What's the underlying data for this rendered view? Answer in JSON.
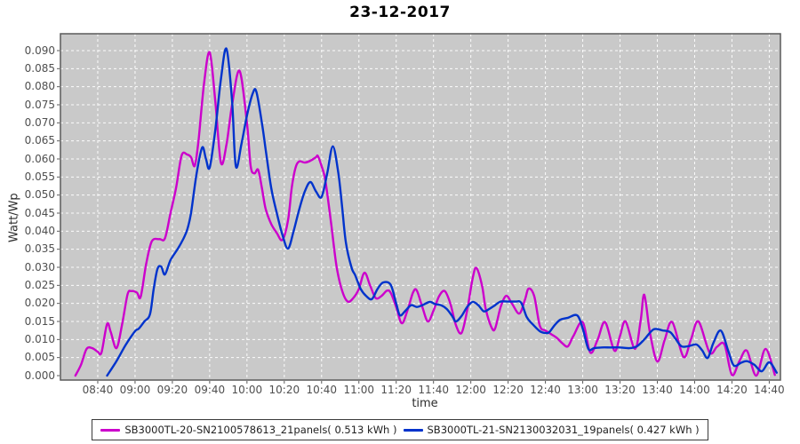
{
  "title": "23-12-2017",
  "axes": {
    "y_label": "Watt/Wp",
    "x_label": "time",
    "y_ticks": [
      "0.000",
      "0.005",
      "0.010",
      "0.015",
      "0.020",
      "0.025",
      "0.030",
      "0.035",
      "0.040",
      "0.045",
      "0.050",
      "0.055",
      "0.060",
      "0.065",
      "0.070",
      "0.075",
      "0.080",
      "0.085",
      "0.090"
    ],
    "x_ticks": [
      "08:40",
      "09:00",
      "09:20",
      "09:40",
      "10:00",
      "10:20",
      "10:40",
      "11:00",
      "11:20",
      "11:40",
      "12:00",
      "12:20",
      "12:40",
      "13:00",
      "13:20",
      "13:40",
      "14:00",
      "14:20",
      "14:40"
    ]
  },
  "legend": {
    "items": [
      {
        "label": "SB3000TL-20-SN2100578613_21panels( 0.513 kWh )",
        "color": "#cc00cc",
        "energy_kwh": "0.513"
      },
      {
        "label": "SB3000TL-21-SN2130032031_19panels( 0.427 kWh )",
        "color": "#0033cc",
        "energy_kwh": "0.427"
      }
    ]
  },
  "style_colors": {
    "plot_background": "#c9c9c9",
    "gridline": "#ffffff",
    "plot_border": "#5a5a5a",
    "tick_mark": "#5a5a5a"
  },
  "chart_data": {
    "type": "line",
    "title": "23-12-2017",
    "xlabel": "time",
    "ylabel": "Watt/Wp",
    "x_unit": "minutes-since-midnight",
    "x_domain": [
      500,
      886
    ],
    "x_tick_step_minutes": 20,
    "ylim": [
      0,
      0.09
    ],
    "y_tick_step": 0.005,
    "grid": true,
    "legend_position": "bottom",
    "series": [
      {
        "name": "SB3000TL-20-SN2100578613_21panels( 0.513 kWh )",
        "color": "#cc00cc",
        "points": [
          [
            508,
            0
          ],
          [
            511,
            0.003
          ],
          [
            514,
            0.0074
          ],
          [
            517,
            0.0076
          ],
          [
            520,
            0.0066
          ],
          [
            522,
            0.0064
          ],
          [
            525,
            0.0143
          ],
          [
            527,
            0.012
          ],
          [
            530,
            0.0076
          ],
          [
            533,
            0.014
          ],
          [
            536,
            0.0225
          ],
          [
            538,
            0.0234
          ],
          [
            541,
            0.023
          ],
          [
            543,
            0.0218
          ],
          [
            546,
            0.031
          ],
          [
            549,
            0.0372
          ],
          [
            553,
            0.0378
          ],
          [
            556,
            0.038
          ],
          [
            559,
            0.045
          ],
          [
            562,
            0.052
          ],
          [
            565,
            0.061
          ],
          [
            568,
            0.0612
          ],
          [
            570,
            0.0605
          ],
          [
            572,
            0.0581
          ],
          [
            574,
            0.065
          ],
          [
            577,
            0.081
          ],
          [
            580,
            0.0895
          ],
          [
            583,
            0.076
          ],
          [
            586,
            0.059
          ],
          [
            589,
            0.064
          ],
          [
            592,
            0.075
          ],
          [
            596,
            0.0844
          ],
          [
            600,
            0.07
          ],
          [
            602,
            0.058
          ],
          [
            604,
            0.056
          ],
          [
            606,
            0.057
          ],
          [
            608,
            0.052
          ],
          [
            610,
            0.0462
          ],
          [
            613,
            0.042
          ],
          [
            616,
            0.0395
          ],
          [
            619,
            0.0376
          ],
          [
            622,
            0.043
          ],
          [
            624,
            0.052
          ],
          [
            626,
            0.0575
          ],
          [
            628,
            0.0593
          ],
          [
            631,
            0.059
          ],
          [
            634,
            0.0595
          ],
          [
            637,
            0.0605
          ],
          [
            638,
            0.0608
          ],
          [
            640,
            0.058
          ],
          [
            642,
            0.0541
          ],
          [
            645,
            0.0426
          ],
          [
            648,
            0.0303
          ],
          [
            651,
            0.0235
          ],
          [
            654,
            0.0205
          ],
          [
            657,
            0.0215
          ],
          [
            660,
            0.024
          ],
          [
            663,
            0.0285
          ],
          [
            666,
            0.025
          ],
          [
            669,
            0.0215
          ],
          [
            672,
            0.022
          ],
          [
            675,
            0.0235
          ],
          [
            677,
            0.023
          ],
          [
            680,
            0.019
          ],
          [
            683,
            0.0145
          ],
          [
            686,
            0.018
          ],
          [
            689,
            0.023
          ],
          [
            691,
            0.0236
          ],
          [
            694,
            0.019
          ],
          [
            697,
            0.015
          ],
          [
            700,
            0.018
          ],
          [
            703,
            0.022
          ],
          [
            706,
            0.0234
          ],
          [
            709,
            0.02
          ],
          [
            712,
            0.014
          ],
          [
            715,
            0.0118
          ],
          [
            718,
            0.018
          ],
          [
            721,
            0.027
          ],
          [
            723,
            0.0298
          ],
          [
            726,
            0.025
          ],
          [
            728,
            0.0185
          ],
          [
            731,
            0.0135
          ],
          [
            733,
            0.013
          ],
          [
            736,
            0.019
          ],
          [
            739,
            0.0221
          ],
          [
            742,
            0.02
          ],
          [
            746,
            0.0172
          ],
          [
            749,
            0.021
          ],
          [
            751,
            0.0241
          ],
          [
            754,
            0.022
          ],
          [
            757,
            0.0138
          ],
          [
            760,
            0.0125
          ],
          [
            763,
            0.0115
          ],
          [
            766,
            0.0105
          ],
          [
            769,
            0.009
          ],
          [
            772,
            0.0081
          ],
          [
            775,
            0.011
          ],
          [
            780,
            0.0148
          ],
          [
            784,
            0.0064
          ],
          [
            788,
            0.01
          ],
          [
            792,
            0.0148
          ],
          [
            797,
            0.0069
          ],
          [
            800,
            0.011
          ],
          [
            803,
            0.015
          ],
          [
            808,
            0.0074
          ],
          [
            811,
            0.015
          ],
          [
            813,
            0.0224
          ],
          [
            816,
            0.012
          ],
          [
            820,
            0.0039
          ],
          [
            824,
            0.01
          ],
          [
            828,
            0.0148
          ],
          [
            834,
            0.0052
          ],
          [
            838,
            0.01
          ],
          [
            842,
            0.015
          ],
          [
            848,
            0.0064
          ],
          [
            852,
            0.008
          ],
          [
            856,
            0.0086
          ],
          [
            860,
            0.0002
          ],
          [
            864,
            0.004
          ],
          [
            868,
            0.0069
          ],
          [
            873,
            0
          ],
          [
            878,
            0.0074
          ],
          [
            883,
            0.0002
          ]
        ]
      },
      {
        "name": "SB3000TL-21-SN2130032031_19panels( 0.427 kWh )",
        "color": "#0033cc",
        "points": [
          [
            525,
            0
          ],
          [
            530,
            0.004
          ],
          [
            535,
            0.0085
          ],
          [
            540,
            0.0123
          ],
          [
            542,
            0.013
          ],
          [
            545,
            0.015
          ],
          [
            548,
            0.017
          ],
          [
            550,
            0.024
          ],
          [
            552,
            0.0295
          ],
          [
            554,
            0.0302
          ],
          [
            556,
            0.028
          ],
          [
            559,
            0.032
          ],
          [
            563,
            0.0352
          ],
          [
            566,
            0.038
          ],
          [
            568,
            0.0405
          ],
          [
            570,
            0.045
          ],
          [
            573,
            0.056
          ],
          [
            576,
            0.0632
          ],
          [
            578,
            0.06
          ],
          [
            580,
            0.0576
          ],
          [
            583,
            0.068
          ],
          [
            586,
            0.082
          ],
          [
            589,
            0.0905
          ],
          [
            592,
            0.076
          ],
          [
            594,
            0.058
          ],
          [
            597,
            0.064
          ],
          [
            600,
            0.072
          ],
          [
            603,
            0.078
          ],
          [
            605,
            0.0787
          ],
          [
            608,
            0.07
          ],
          [
            610,
            0.0627
          ],
          [
            613,
            0.052
          ],
          [
            616,
            0.045
          ],
          [
            619,
            0.039
          ],
          [
            622,
            0.0352
          ],
          [
            625,
            0.04
          ],
          [
            628,
            0.046
          ],
          [
            631,
            0.051
          ],
          [
            634,
            0.0536
          ],
          [
            637,
            0.051
          ],
          [
            640,
            0.0495
          ],
          [
            643,
            0.056
          ],
          [
            646,
            0.0635
          ],
          [
            649,
            0.056
          ],
          [
            651,
            0.0467
          ],
          [
            653,
            0.0369
          ],
          [
            656,
            0.03
          ],
          [
            658,
            0.0278
          ],
          [
            661,
            0.024
          ],
          [
            664,
            0.022
          ],
          [
            667,
            0.0212
          ],
          [
            670,
            0.024
          ],
          [
            673,
            0.0258
          ],
          [
            677,
            0.0252
          ],
          [
            680,
            0.02
          ],
          [
            682,
            0.0167
          ],
          [
            685,
            0.018
          ],
          [
            688,
            0.0195
          ],
          [
            691,
            0.019
          ],
          [
            694,
            0.0195
          ],
          [
            698,
            0.0204
          ],
          [
            701,
            0.0198
          ],
          [
            704,
            0.0195
          ],
          [
            707,
            0.0185
          ],
          [
            710,
            0.0165
          ],
          [
            712,
            0.015
          ],
          [
            715,
            0.0165
          ],
          [
            718,
            0.019
          ],
          [
            721,
            0.0204
          ],
          [
            724,
            0.0195
          ],
          [
            727,
            0.0178
          ],
          [
            730,
            0.0185
          ],
          [
            733,
            0.0195
          ],
          [
            736,
            0.0205
          ],
          [
            740,
            0.0205
          ],
          [
            744,
            0.0205
          ],
          [
            747,
            0.0202
          ],
          [
            750,
            0.0162
          ],
          [
            753,
            0.0143
          ],
          [
            757,
            0.0123
          ],
          [
            760,
            0.0118
          ],
          [
            762,
            0.012
          ],
          [
            765,
            0.014
          ],
          [
            768,
            0.0155
          ],
          [
            772,
            0.016
          ],
          [
            777,
            0.0167
          ],
          [
            780,
            0.013
          ],
          [
            783,
            0.0074
          ],
          [
            786,
            0.0076
          ],
          [
            790,
            0.0078
          ],
          [
            795,
            0.0078
          ],
          [
            800,
            0.0078
          ],
          [
            805,
            0.0076
          ],
          [
            809,
            0.0081
          ],
          [
            813,
            0.01
          ],
          [
            818,
            0.0128
          ],
          [
            823,
            0.0125
          ],
          [
            827,
            0.012
          ],
          [
            830,
            0.01
          ],
          [
            833,
            0.0081
          ],
          [
            837,
            0.0082
          ],
          [
            841,
            0.0086
          ],
          [
            844,
            0.007
          ],
          [
            847,
            0.0049
          ],
          [
            850,
            0.009
          ],
          [
            854,
            0.0125
          ],
          [
            858,
            0.0069
          ],
          [
            861,
            0.0028
          ],
          [
            865,
            0.0036
          ],
          [
            868,
            0.004
          ],
          [
            872,
            0.003
          ],
          [
            876,
            0.0012
          ],
          [
            880,
            0.0037
          ],
          [
            884,
            0.0008
          ]
        ]
      }
    ]
  }
}
